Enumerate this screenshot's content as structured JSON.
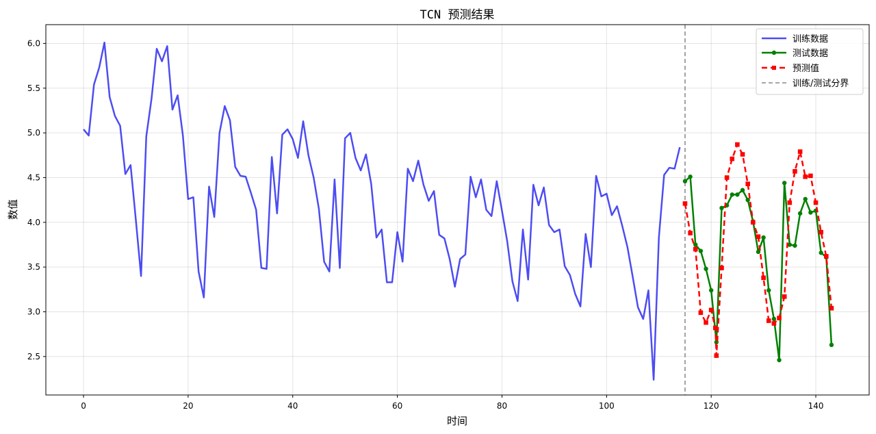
{
  "chart_data": {
    "type": "line",
    "title": "TCN 预测结果",
    "xlabel": "时间",
    "ylabel": "数值",
    "xlim": [
      -7.2,
      150.2
    ],
    "ylim": [
      2.07,
      6.21
    ],
    "xticks": [
      0,
      20,
      40,
      60,
      80,
      100,
      120,
      140
    ],
    "yticks": [
      2.5,
      3.0,
      3.5,
      4.0,
      4.5,
      5.0,
      5.5,
      6.0
    ],
    "grid": true,
    "legend_position": "top-right",
    "split_line": {
      "x": 115,
      "label": "训练/测试分界",
      "color": "#999999"
    },
    "series": [
      {
        "name": "训练数据",
        "color": "#0000ee",
        "style": "line",
        "x": [
          0,
          1,
          2,
          3,
          4,
          5,
          6,
          7,
          8,
          9,
          10,
          11,
          12,
          13,
          14,
          15,
          16,
          17,
          18,
          19,
          20,
          21,
          22,
          23,
          24,
          25,
          26,
          27,
          28,
          29,
          30,
          31,
          32,
          33,
          34,
          35,
          36,
          37,
          38,
          39,
          40,
          41,
          42,
          43,
          44,
          45,
          46,
          47,
          48,
          49,
          50,
          51,
          52,
          53,
          54,
          55,
          56,
          57,
          58,
          59,
          60,
          61,
          62,
          63,
          64,
          65,
          66,
          67,
          68,
          69,
          70,
          71,
          72,
          73,
          74,
          75,
          76,
          77,
          78,
          79,
          80,
          81,
          82,
          83,
          84,
          85,
          86,
          87,
          88,
          89,
          90,
          91,
          92,
          93,
          94,
          95,
          96,
          97,
          98,
          99,
          100,
          101,
          102,
          103,
          104,
          105,
          106,
          107,
          108,
          109,
          110,
          111,
          112,
          113,
          114
        ],
        "values": [
          5.04,
          4.97,
          5.54,
          5.73,
          6.01,
          5.4,
          5.19,
          5.08,
          4.54,
          4.64,
          4.03,
          3.4,
          4.96,
          5.38,
          5.94,
          5.8,
          5.97,
          5.26,
          5.42,
          4.97,
          4.26,
          4.28,
          3.45,
          3.16,
          4.4,
          4.06,
          5.0,
          5.3,
          5.14,
          4.62,
          4.52,
          4.51,
          4.33,
          4.14,
          3.49,
          3.48,
          4.73,
          4.1,
          4.98,
          5.04,
          4.93,
          4.72,
          5.13,
          4.75,
          4.5,
          4.15,
          3.56,
          3.45,
          4.48,
          3.49,
          4.94,
          5.0,
          4.72,
          4.58,
          4.76,
          4.43,
          3.83,
          3.92,
          3.33,
          3.33,
          3.89,
          3.56,
          4.6,
          4.46,
          4.69,
          4.42,
          4.24,
          4.35,
          3.86,
          3.82,
          3.59,
          3.28,
          3.59,
          3.64,
          4.51,
          4.28,
          4.48,
          4.14,
          4.07,
          4.46,
          4.13,
          3.79,
          3.34,
          3.12,
          3.92,
          3.36,
          4.42,
          4.19,
          4.39,
          3.97,
          3.89,
          3.92,
          3.51,
          3.41,
          3.2,
          3.06,
          3.87,
          3.5,
          4.52,
          4.29,
          4.32,
          4.08,
          4.18,
          3.96,
          3.72,
          3.39,
          3.05,
          2.92,
          3.24,
          2.24,
          3.83,
          4.53,
          4.61,
          4.6,
          4.84
        ]
      },
      {
        "name": "测试数据",
        "color": "#008000",
        "style": "line-circle",
        "x": [
          115,
          116,
          117,
          118,
          119,
          120,
          121,
          122,
          123,
          124,
          125,
          126,
          127,
          128,
          129,
          130,
          131,
          132,
          133,
          134,
          135,
          136,
          137,
          138,
          139,
          140,
          141,
          142,
          143
        ],
        "values": [
          4.46,
          4.51,
          3.75,
          3.68,
          3.48,
          3.24,
          2.66,
          4.16,
          4.19,
          4.31,
          4.31,
          4.36,
          4.25,
          4.01,
          3.67,
          3.83,
          3.24,
          2.92,
          2.46,
          4.44,
          3.75,
          3.74,
          4.1,
          4.26,
          4.11,
          4.13,
          3.66,
          3.61,
          2.63
        ]
      },
      {
        "name": "预测值",
        "color": "#ff0000",
        "style": "dashed-square",
        "x": [
          115,
          116,
          117,
          118,
          119,
          120,
          120.8,
          121,
          122,
          123,
          124,
          125,
          126,
          127,
          128,
          129,
          130,
          131,
          132,
          133,
          134,
          135,
          136,
          137,
          138,
          139,
          140,
          141,
          142,
          143
        ],
        "values": [
          4.21,
          3.88,
          3.7,
          2.99,
          2.88,
          3.02,
          2.82,
          2.51,
          3.49,
          4.5,
          4.71,
          4.87,
          4.76,
          4.43,
          4.0,
          3.84,
          3.38,
          2.9,
          2.87,
          2.93,
          3.17,
          4.22,
          4.57,
          4.79,
          4.51,
          4.52,
          4.22,
          3.89,
          3.62,
          3.04
        ]
      }
    ],
    "legend": [
      {
        "label": "训练数据"
      },
      {
        "label": "测试数据"
      },
      {
        "label": "预测值"
      },
      {
        "label": "训练/测试分界"
      }
    ]
  }
}
